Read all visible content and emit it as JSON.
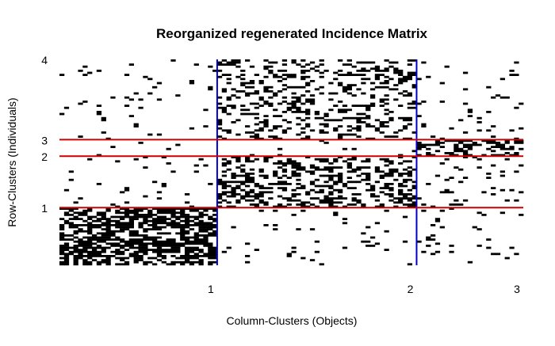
{
  "chart_data": {
    "type": "heatmap",
    "title": "Reorganized regenerated Incidence Matrix",
    "xlabel": "Column-Clusters (Objects)",
    "ylabel": "Row-Clusters (Individuals)",
    "x_ticks": [
      "1",
      "2",
      "3"
    ],
    "y_ticks": [
      "1",
      "2",
      "3",
      "4"
    ],
    "n_rows": 100,
    "n_cols": 100,
    "column_cluster_boundaries": [
      34,
      77
    ],
    "row_cluster_boundaries": [
      28,
      53,
      61
    ],
    "block_density": [
      [
        0.62,
        0.04,
        0.04
      ],
      [
        0.05,
        0.38,
        0.06
      ],
      [
        0.04,
        0.03,
        0.42
      ],
      [
        0.04,
        0.28,
        0.05
      ]
    ],
    "colors": {
      "cell": "#000000",
      "column_separator": "#0000cc",
      "row_separator": "#cc0000",
      "background": "#ffffff"
    }
  }
}
